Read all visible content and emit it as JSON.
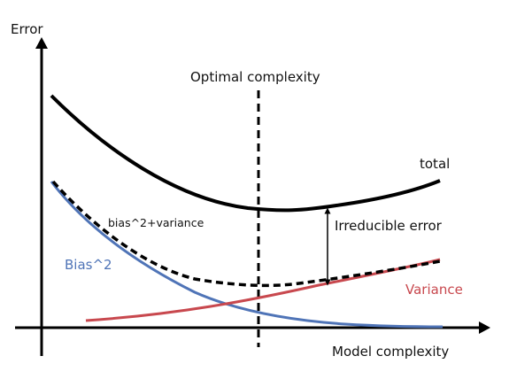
{
  "labels": {
    "y_axis": "Error",
    "x_axis": "Model complexity",
    "optimal": "Optimal complexity",
    "total": "total",
    "bias_variance": "bias^2+variance",
    "irreducible": "Irreducible error",
    "bias": "Bias^2",
    "variance": "Variance"
  },
  "colors": {
    "axis": "#000000",
    "total": "#000000",
    "bias_variance": "#000000",
    "bias": "#4f74b7",
    "variance": "#c8484e"
  }
}
